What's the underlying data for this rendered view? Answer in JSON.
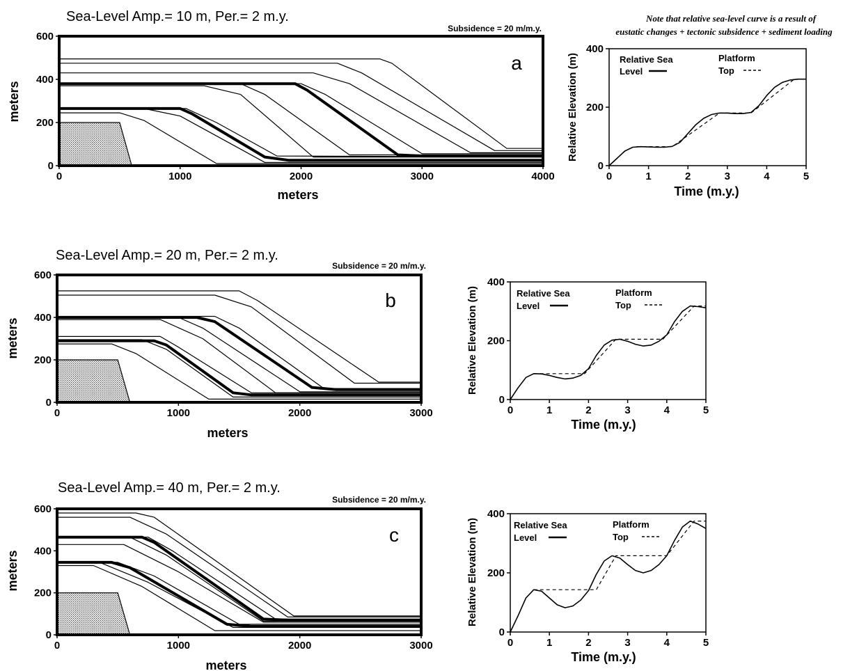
{
  "figure": {
    "note_line1": "Note that relative sea-level curve is a result of",
    "note_line2": "eustatic changes + tectonic subsidence + sediment loading"
  },
  "colors": {
    "ink": "#000000",
    "background": "#ffffff"
  },
  "chart_data": [
    {
      "type": "line",
      "panel": "a",
      "title": "Sea-Level Amp.= 10 m, Per.= 2 m.y.",
      "subtitle": "Subsidence = 20 m/m.y.",
      "panel_letter": "a",
      "xlabel": "meters",
      "ylabel": "meters",
      "xlim": [
        0,
        4000
      ],
      "ylim": [
        0,
        600
      ],
      "x_ticks": [
        0,
        1000,
        2000,
        3000,
        4000
      ],
      "y_ticks": [
        0,
        200,
        400,
        600
      ],
      "basement": {
        "x": [
          0,
          500,
          600
        ],
        "top": 200
      },
      "series": [
        {
          "weight": "thin",
          "x": [
            0,
            600
          ],
          "y": [
            0,
            0
          ]
        },
        {
          "weight": "thin",
          "x": [
            0,
            500,
            700,
            1300,
            4000
          ],
          "y": [
            245,
            245,
            210,
            10,
            10
          ]
        },
        {
          "weight": "thin",
          "x": [
            0,
            700,
            1000,
            1700,
            4000
          ],
          "y": [
            265,
            265,
            230,
            15,
            15
          ]
        },
        {
          "weight": "thick",
          "x": [
            0,
            1000,
            1100,
            1700,
            1900,
            4000
          ],
          "y": [
            265,
            265,
            240,
            40,
            25,
            25
          ]
        },
        {
          "weight": "thin",
          "x": [
            0,
            1050,
            1300,
            1800,
            4000
          ],
          "y": [
            265,
            265,
            200,
            45,
            40
          ]
        },
        {
          "weight": "thin",
          "x": [
            0,
            1200,
            1500,
            2100,
            4000
          ],
          "y": [
            370,
            370,
            330,
            40,
            40
          ]
        },
        {
          "weight": "thin",
          "x": [
            0,
            1500,
            1700,
            2400,
            4000
          ],
          "y": [
            380,
            380,
            330,
            50,
            50
          ]
        },
        {
          "weight": "thick",
          "x": [
            0,
            1950,
            2050,
            2800,
            3000,
            4000
          ],
          "y": [
            380,
            380,
            350,
            50,
            45,
            45
          ]
        },
        {
          "weight": "thin",
          "x": [
            0,
            2000,
            2200,
            3000,
            4000
          ],
          "y": [
            380,
            380,
            330,
            55,
            55
          ]
        },
        {
          "weight": "thin",
          "x": [
            0,
            2100,
            2400,
            3400,
            4000
          ],
          "y": [
            430,
            430,
            380,
            60,
            60
          ]
        },
        {
          "weight": "thin",
          "x": [
            0,
            2300,
            2500,
            3600,
            4000
          ],
          "y": [
            475,
            475,
            430,
            70,
            70
          ]
        },
        {
          "weight": "thin",
          "x": [
            0,
            2650,
            2750,
            3700,
            4000
          ],
          "y": [
            495,
            495,
            475,
            80,
            80
          ]
        }
      ]
    },
    {
      "type": "line",
      "panel": "a-inset",
      "xlabel": "Time (m.y.)",
      "ylabel": "Relative Elevation (m)",
      "xlim": [
        0,
        5
      ],
      "ylim": [
        0,
        400
      ],
      "x_ticks": [
        0,
        1,
        2,
        3,
        4,
        5
      ],
      "y_ticks": [
        0,
        200,
        400
      ],
      "legend": {
        "entries": [
          "Relative Sea Level",
          "Platform Top"
        ]
      },
      "legend_labels": {
        "sea1": "Relative Sea",
        "sea2": "Level",
        "plat1": "Platform",
        "plat2": "Top"
      },
      "series": [
        {
          "name": "Relative Sea Level",
          "style": "solid",
          "x": [
            0,
            0.2,
            0.4,
            0.6,
            0.8,
            1.0,
            1.2,
            1.4,
            1.6,
            1.8,
            2.0,
            2.2,
            2.4,
            2.6,
            2.8,
            3.0,
            3.2,
            3.4,
            3.6,
            3.8,
            4.0,
            4.2,
            4.4,
            4.6,
            4.8,
            5.0
          ],
          "y": [
            0,
            25,
            50,
            63,
            65,
            64,
            63,
            63,
            66,
            80,
            110,
            140,
            162,
            175,
            180,
            180,
            178,
            178,
            182,
            205,
            240,
            268,
            285,
            293,
            296,
            296
          ]
        },
        {
          "name": "Platform Top",
          "style": "dashed",
          "x": [
            0.7,
            1.6,
            2.8,
            3.6,
            4.7,
            5.0
          ],
          "y": [
            65,
            65,
            180,
            180,
            296,
            296
          ]
        }
      ]
    },
    {
      "type": "line",
      "panel": "b",
      "title": "Sea-Level Amp.= 20 m, Per.= 2 m.y.",
      "subtitle": "Subsidence = 20 m/m.y.",
      "panel_letter": "b",
      "xlabel": "meters",
      "ylabel": "meters",
      "xlim": [
        0,
        3000
      ],
      "ylim": [
        0,
        600
      ],
      "x_ticks": [
        0,
        1000,
        2000,
        3000
      ],
      "y_ticks": [
        0,
        200,
        400,
        600
      ],
      "basement": {
        "x": [
          0,
          500,
          600
        ],
        "top": 200
      },
      "series": [
        {
          "weight": "thin",
          "x": [
            0,
            600
          ],
          "y": [
            0,
            0
          ]
        },
        {
          "weight": "thin",
          "x": [
            0,
            450,
            650,
            1250,
            3000
          ],
          "y": [
            275,
            275,
            230,
            15,
            15
          ]
        },
        {
          "weight": "thin",
          "x": [
            0,
            700,
            900,
            1450,
            3000
          ],
          "y": [
            295,
            295,
            250,
            25,
            25
          ]
        },
        {
          "weight": "thick",
          "x": [
            0,
            800,
            900,
            1450,
            1600,
            3000
          ],
          "y": [
            290,
            290,
            270,
            45,
            35,
            35
          ]
        },
        {
          "weight": "thin",
          "x": [
            0,
            850,
            1000,
            1600,
            3000
          ],
          "y": [
            310,
            310,
            260,
            45,
            45
          ]
        },
        {
          "weight": "thin",
          "x": [
            0,
            850,
            1200,
            1800,
            3000
          ],
          "y": [
            390,
            390,
            300,
            45,
            45
          ]
        },
        {
          "weight": "thin",
          "x": [
            0,
            1000,
            1200,
            2000,
            3000
          ],
          "y": [
            400,
            400,
            350,
            50,
            50
          ]
        },
        {
          "weight": "thick",
          "x": [
            0,
            1150,
            1300,
            2100,
            2300,
            3000
          ],
          "y": [
            400,
            400,
            380,
            70,
            60,
            60
          ]
        },
        {
          "weight": "thin",
          "x": [
            0,
            1300,
            1500,
            2200,
            3000
          ],
          "y": [
            405,
            405,
            350,
            65,
            65
          ]
        },
        {
          "weight": "thin",
          "x": [
            0,
            1300,
            1600,
            2450,
            3000
          ],
          "y": [
            505,
            505,
            450,
            90,
            90
          ]
        },
        {
          "weight": "thin",
          "x": [
            0,
            1500,
            1650,
            2650,
            3000
          ],
          "y": [
            525,
            525,
            480,
            95,
            95
          ]
        }
      ]
    },
    {
      "type": "line",
      "panel": "b-inset",
      "xlabel": "Time (m.y.)",
      "ylabel": "Relative Elevation (m)",
      "xlim": [
        0,
        5
      ],
      "ylim": [
        0,
        400
      ],
      "x_ticks": [
        0,
        1,
        2,
        3,
        4,
        5
      ],
      "y_ticks": [
        0,
        200,
        400
      ],
      "legend": {
        "entries": [
          "Relative Sea Level",
          "Platform Top"
        ]
      },
      "legend_labels": {
        "sea1": "Relative Sea",
        "sea2": "Level",
        "plat1": "Platform",
        "plat2": "Top"
      },
      "series": [
        {
          "name": "Relative Sea Level",
          "style": "solid",
          "x": [
            0,
            0.2,
            0.4,
            0.6,
            0.8,
            1.0,
            1.2,
            1.4,
            1.6,
            1.8,
            2.0,
            2.2,
            2.4,
            2.6,
            2.8,
            3.0,
            3.2,
            3.4,
            3.6,
            3.8,
            4.0,
            4.2,
            4.4,
            4.6,
            4.8,
            5.0
          ],
          "y": [
            0,
            40,
            75,
            88,
            87,
            82,
            75,
            70,
            73,
            82,
            105,
            150,
            185,
            202,
            205,
            198,
            188,
            182,
            185,
            198,
            220,
            265,
            300,
            318,
            316,
            312
          ]
        },
        {
          "name": "Platform Top",
          "style": "dashed",
          "x": [
            0.6,
            1.9,
            2.7,
            3.9,
            4.7,
            5.0
          ],
          "y": [
            88,
            88,
            205,
            205,
            318,
            318
          ]
        }
      ]
    },
    {
      "type": "line",
      "panel": "c",
      "title": "Sea-Level Amp.= 40 m, Per.= 2 m.y.",
      "subtitle": "Subsidence = 20 m/m.y.",
      "panel_letter": "c",
      "xlabel": "meters",
      "ylabel": "meters",
      "xlim": [
        0,
        3000
      ],
      "ylim": [
        0,
        600
      ],
      "x_ticks": [
        0,
        1000,
        2000,
        3000
      ],
      "y_ticks": [
        0,
        200,
        400,
        600
      ],
      "basement": {
        "x": [
          0,
          500,
          600
        ],
        "top": 200
      },
      "series": [
        {
          "weight": "thin",
          "x": [
            0,
            600
          ],
          "y": [
            0,
            0
          ]
        },
        {
          "weight": "thin",
          "x": [
            0,
            300,
            700,
            1300,
            3000
          ],
          "y": [
            330,
            330,
            230,
            20,
            20
          ]
        },
        {
          "weight": "thin",
          "x": [
            0,
            350,
            750,
            1450,
            3000
          ],
          "y": [
            345,
            345,
            250,
            35,
            35
          ]
        },
        {
          "weight": "thick",
          "x": [
            0,
            450,
            600,
            1400,
            1600,
            3000
          ],
          "y": [
            345,
            345,
            320,
            50,
            40,
            40
          ]
        },
        {
          "weight": "thin",
          "x": [
            0,
            500,
            800,
            1500,
            3000
          ],
          "y": [
            345,
            345,
            280,
            50,
            50
          ]
        },
        {
          "weight": "thin",
          "x": [
            0,
            550,
            1000,
            1700,
            3000
          ],
          "y": [
            430,
            430,
            300,
            60,
            60
          ]
        },
        {
          "weight": "thin",
          "x": [
            0,
            600,
            900,
            1700,
            3000
          ],
          "y": [
            465,
            465,
            380,
            65,
            65
          ]
        },
        {
          "weight": "thick",
          "x": [
            0,
            700,
            800,
            1700,
            1900,
            3000
          ],
          "y": [
            465,
            465,
            440,
            75,
            70,
            70
          ]
        },
        {
          "weight": "thin",
          "x": [
            0,
            750,
            950,
            1800,
            3000
          ],
          "y": [
            465,
            465,
            400,
            75,
            75
          ]
        },
        {
          "weight": "thin",
          "x": [
            0,
            600,
            900,
            1900,
            3000
          ],
          "y": [
            560,
            560,
            480,
            85,
            85
          ]
        },
        {
          "weight": "thin",
          "x": [
            0,
            650,
            800,
            1950,
            3000
          ],
          "y": [
            580,
            580,
            560,
            90,
            90
          ]
        }
      ]
    },
    {
      "type": "line",
      "panel": "c-inset",
      "xlabel": "Time (m.y.)",
      "ylabel": "Relative Elevation (m)",
      "xlim": [
        0,
        5
      ],
      "ylim": [
        0,
        400
      ],
      "x_ticks": [
        0,
        1,
        2,
        3,
        4,
        5
      ],
      "y_ticks": [
        0,
        200,
        400
      ],
      "legend": {
        "entries": [
          "Relative Sea Level",
          "Platform Top"
        ]
      },
      "legend_labels": {
        "sea1": "Relative Sea",
        "sea2": "Level",
        "plat1": "Platform",
        "plat2": "Top"
      },
      "series": [
        {
          "name": "Relative Sea Level",
          "style": "solid",
          "x": [
            0,
            0.2,
            0.4,
            0.6,
            0.8,
            1.0,
            1.2,
            1.4,
            1.6,
            1.8,
            2.0,
            2.2,
            2.4,
            2.6,
            2.8,
            3.0,
            3.2,
            3.4,
            3.6,
            3.8,
            4.0,
            4.2,
            4.4,
            4.6,
            4.8,
            5.0
          ],
          "y": [
            0,
            55,
            115,
            143,
            138,
            115,
            92,
            82,
            88,
            108,
            140,
            195,
            240,
            258,
            250,
            228,
            208,
            200,
            208,
            228,
            258,
            310,
            355,
            375,
            365,
            350
          ]
        },
        {
          "name": "Platform Top",
          "style": "dashed",
          "x": [
            0.6,
            2.2,
            2.7,
            4.0,
            4.7,
            5.0
          ],
          "y": [
            143,
            143,
            258,
            258,
            375,
            375
          ]
        }
      ]
    }
  ]
}
